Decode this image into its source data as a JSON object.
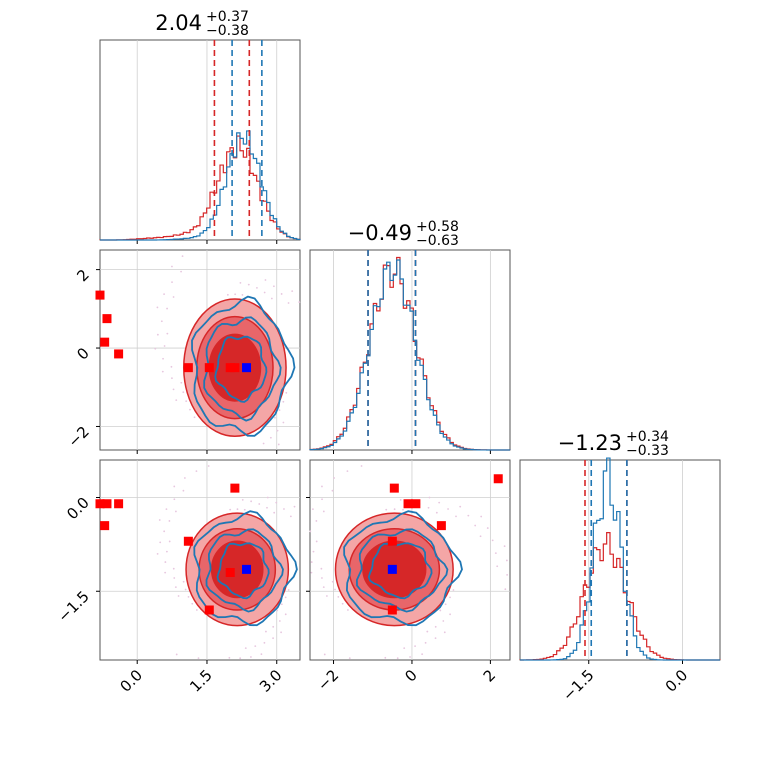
{
  "chart_data": {
    "type": "corner",
    "grid": true,
    "colors": {
      "series_a": "#d62728",
      "series_b": "#1f77b4",
      "points_red": "#ff0000",
      "point_blue": "#0000ff",
      "fill_light": "#f4a6a6",
      "fill_mid": "#e8666a",
      "fill_dark": "#d62728"
    },
    "parameters": [
      {
        "index": 0,
        "title_value": "2.04",
        "title_plus": "+0.37",
        "title_minus": "−0.38",
        "range": [
          -0.8,
          3.5
        ],
        "ticks": [
          0.0,
          1.5,
          3.0
        ],
        "tick_labels": [
          "0.0",
          "1.5",
          "3.0"
        ],
        "quantile_lines": {
          "series_a": [
            1.66,
            2.41
          ],
          "series_b": [
            2.04,
            2.68
          ]
        }
      },
      {
        "index": 1,
        "title_value": "−0.49",
        "title_plus": "+0.58",
        "title_minus": "−0.63",
        "range": [
          -2.6,
          2.5
        ],
        "ticks": [
          -2,
          0,
          2
        ],
        "tick_labels": [
          "−2",
          "0",
          "2"
        ],
        "quantile_lines": {
          "series_a": [
            -1.12,
            0.09
          ],
          "series_b": [
            -1.12,
            0.09
          ]
        }
      },
      {
        "index": 2,
        "title_value": "−1.23",
        "title_plus": "+0.34",
        "title_minus": "−0.33",
        "range": [
          -2.6,
          0.6
        ],
        "ticks": [
          -1.5,
          0.0
        ],
        "tick_labels": [
          "−1.5",
          "0.0"
        ],
        "quantile_lines": {
          "series_a": [
            -1.56,
            -0.89
          ],
          "series_b": [
            -1.46,
            -0.89
          ]
        }
      }
    ],
    "hist_x": [
      -0.1,
      0.2,
      0.5,
      0.8,
      1.1,
      1.4,
      1.6,
      1.8,
      2.0,
      2.2,
      2.4,
      2.6,
      2.8,
      3.0,
      3.2
    ],
    "hist_0_series_a": [
      0.01,
      0.02,
      0.03,
      0.05,
      0.09,
      0.18,
      0.34,
      0.55,
      0.72,
      0.78,
      0.62,
      0.35,
      0.18,
      0.06,
      0.02
    ],
    "hist_0_series_b": [
      0.0,
      0.0,
      0.0,
      0.01,
      0.02,
      0.05,
      0.12,
      0.36,
      0.72,
      0.92,
      0.85,
      0.52,
      0.22,
      0.07,
      0.02
    ],
    "scatter_red": [
      {
        "x": -0.8,
        "y1": 1.35,
        "y2": -0.1
      },
      {
        "x": -0.65,
        "y1": 0.75,
        "y2": -0.1
      },
      {
        "x": -0.7,
        "y1": 0.15,
        "y2": -0.45
      },
      {
        "x": -0.4,
        "y1": -0.15,
        "y2": -0.1
      },
      {
        "x": 1.1,
        "y1": -0.5,
        "y2": -0.7
      },
      {
        "x": 1.55,
        "y1": -0.5,
        "y2": -1.8
      },
      {
        "x": 2.0,
        "y1": -0.5,
        "y2": -1.2
      },
      {
        "x": 2.1,
        "y1": -0.5,
        "y2": 0.15
      }
    ],
    "points_red_12": [
      {
        "x": -0.45,
        "y": 0.15
      },
      {
        "x": -0.1,
        "y": -0.1
      },
      {
        "x": 0.1,
        "y": -0.1
      },
      {
        "x": 0.75,
        "y": -0.45
      },
      {
        "x": 2.2,
        "y": 0.3
      },
      {
        "x": -0.5,
        "y": -0.7
      },
      {
        "x": -0.5,
        "y": -1.8
      }
    ],
    "truth_blue": {
      "p0": 2.35,
      "p1": -0.5,
      "p2": -1.15
    },
    "contours_01": {
      "cx": 2.1,
      "cy": -0.5,
      "levels": [
        [
          0.55,
          0.85
        ],
        [
          0.82,
          1.3
        ],
        [
          1.1,
          1.75
        ]
      ]
    },
    "contours_02": {
      "cx": 2.15,
      "cy": -1.15,
      "levels": [
        [
          0.55,
          0.45
        ],
        [
          0.82,
          0.65
        ],
        [
          1.1,
          0.9
        ]
      ]
    },
    "contours_12": {
      "cx": -0.45,
      "cy": -1.15,
      "levels": [
        [
          0.8,
          0.45
        ],
        [
          1.15,
          0.65
        ],
        [
          1.5,
          0.9
        ]
      ]
    }
  }
}
